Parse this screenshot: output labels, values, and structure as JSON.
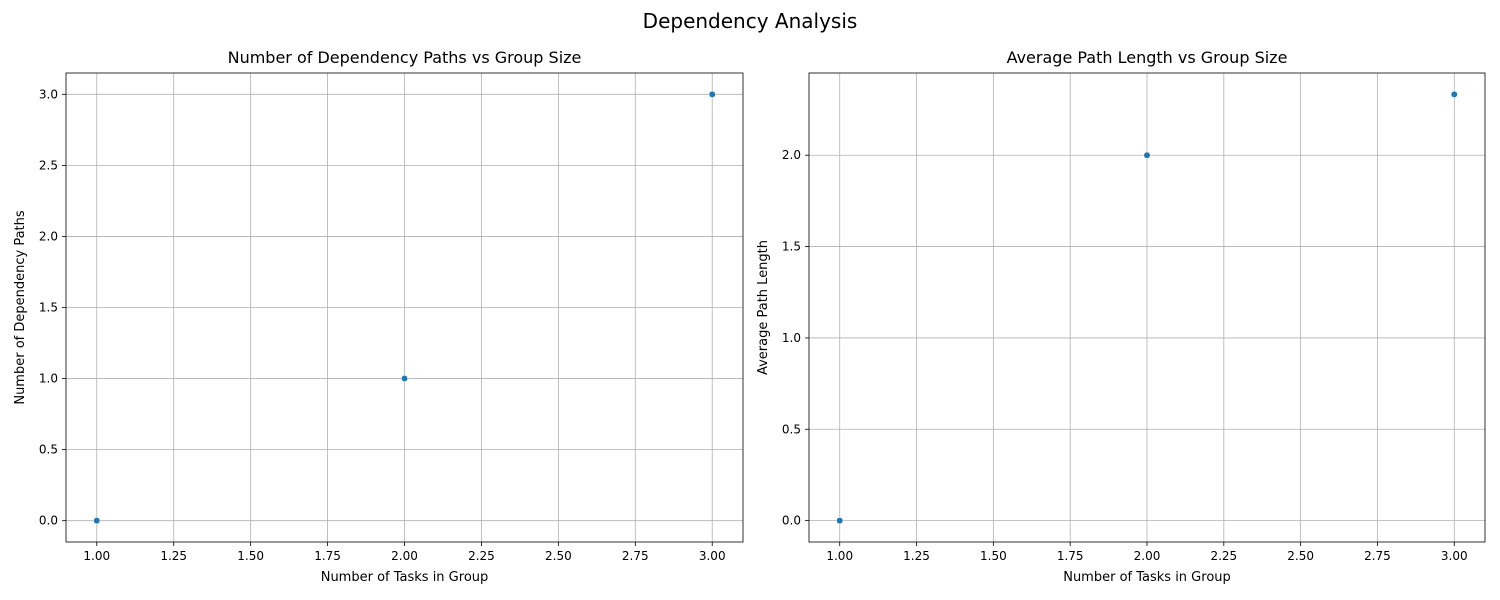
{
  "figure": {
    "suptitle": "Dependency Analysis"
  },
  "chart_data": [
    {
      "type": "scatter",
      "title": "Number of Dependency Paths vs Group Size",
      "xlabel": "Number of Tasks in Group",
      "ylabel": "Number of Dependency Paths",
      "x": [
        1,
        2,
        3
      ],
      "y": [
        0,
        1,
        3
      ],
      "xlim": [
        0.9,
        3.1
      ],
      "ylim": [
        -0.15,
        3.15
      ],
      "xticks": [
        1.0,
        1.25,
        1.5,
        1.75,
        2.0,
        2.25,
        2.5,
        2.75,
        3.0
      ],
      "xtick_labels": [
        "1.00",
        "1.25",
        "1.50",
        "1.75",
        "2.00",
        "2.25",
        "2.50",
        "2.75",
        "3.00"
      ],
      "yticks": [
        0.0,
        0.5,
        1.0,
        1.5,
        2.0,
        2.5,
        3.0
      ],
      "ytick_labels": [
        "0.0",
        "0.5",
        "1.0",
        "1.5",
        "2.0",
        "2.5",
        "3.0"
      ],
      "grid": true,
      "color": "#1f77b4"
    },
    {
      "type": "scatter",
      "title": "Average Path Length vs Group Size",
      "xlabel": "Number of Tasks in Group",
      "ylabel": "Average Path Length",
      "x": [
        1,
        2,
        3
      ],
      "y": [
        0,
        2,
        2.333
      ],
      "xlim": [
        0.9,
        3.1
      ],
      "ylim": [
        -0.117,
        2.45
      ],
      "xticks": [
        1.0,
        1.25,
        1.5,
        1.75,
        2.0,
        2.25,
        2.5,
        2.75,
        3.0
      ],
      "xtick_labels": [
        "1.00",
        "1.25",
        "1.50",
        "1.75",
        "2.00",
        "2.25",
        "2.50",
        "2.75",
        "3.00"
      ],
      "yticks": [
        0.0,
        0.5,
        1.0,
        1.5,
        2.0
      ],
      "ytick_labels": [
        "0.0",
        "0.5",
        "1.0",
        "1.5",
        "2.0"
      ],
      "grid": true,
      "color": "#1f77b4"
    }
  ]
}
